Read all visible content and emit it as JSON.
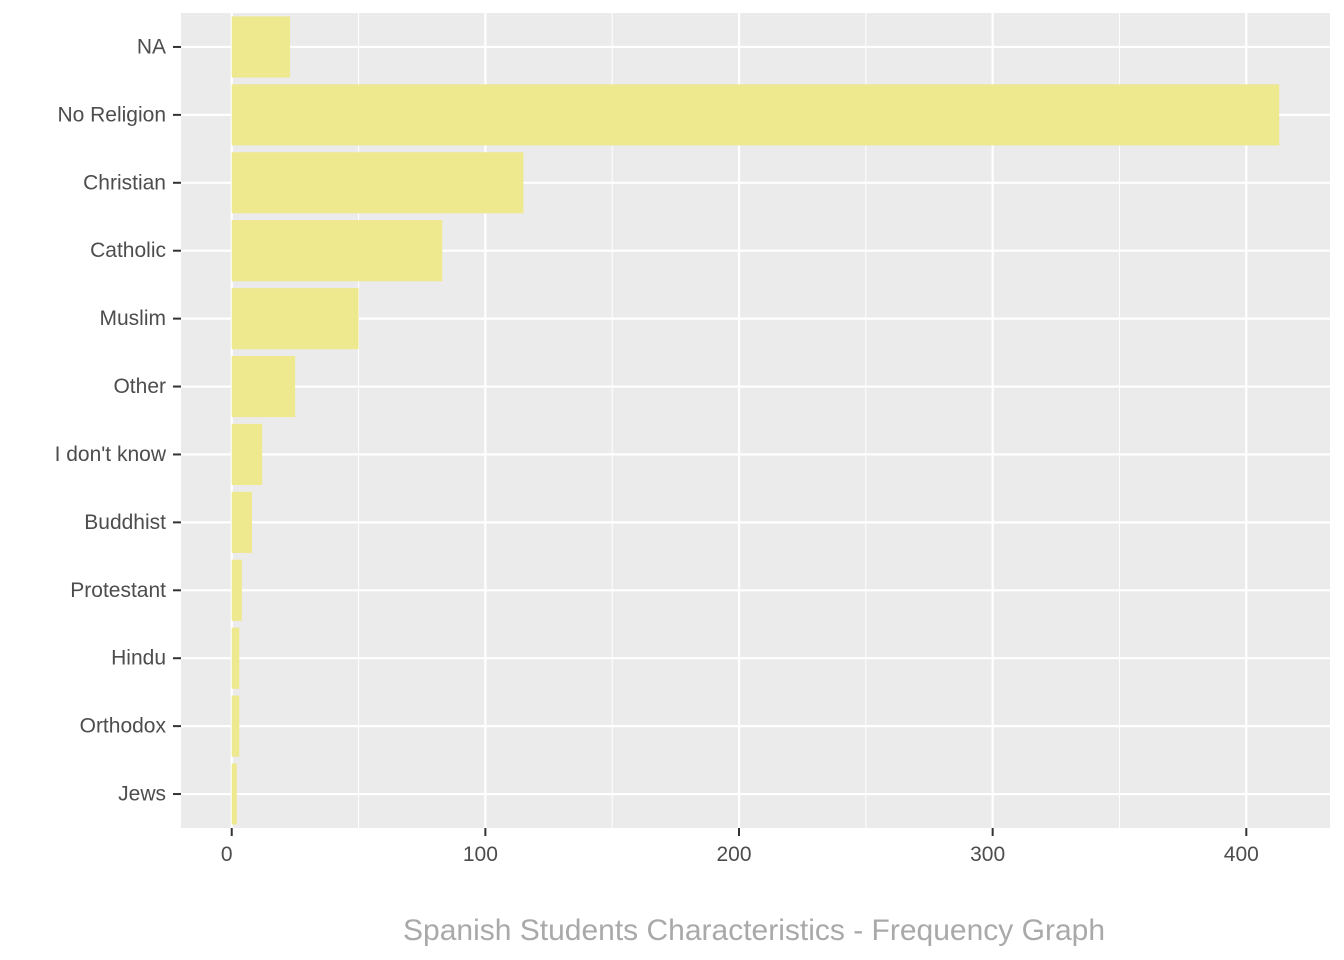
{
  "chart_data": {
    "type": "bar",
    "orientation": "horizontal",
    "categories": [
      "NA",
      "No Religion",
      "Christian",
      "Catholic",
      "Muslim",
      "Other",
      "I don't know",
      "Buddhist",
      "Protestant",
      "Hindu",
      "Orthodox",
      "Jews"
    ],
    "values": [
      23,
      413,
      115,
      83,
      50,
      25,
      12,
      8,
      4,
      3,
      3,
      2
    ],
    "xlim": [
      -20,
      433
    ],
    "xticks": [
      0,
      100,
      200,
      300,
      400
    ],
    "xtick_labels": [
      "0",
      "100",
      "200",
      "300",
      "400"
    ],
    "xlabel": "",
    "ylabel": "",
    "caption": "Spanish Students Characteristics - Frequency Graph",
    "bar_color": "#EEE88E",
    "panel_background": "#EBEBEB",
    "grid": true,
    "legend": "none"
  }
}
